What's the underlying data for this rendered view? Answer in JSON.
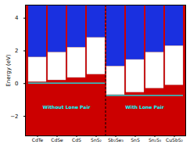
{
  "chart_data": {
    "type": "bar",
    "categories": [
      "CdTe",
      "CdSe",
      "CdS",
      "SnS₂",
      "Sb₂Se₃",
      "SnS",
      "Sn₂S₃",
      "CuSbS₂"
    ],
    "vbm": [
      0.1,
      0.2,
      0.35,
      0.55,
      -0.7,
      -0.55,
      -0.3,
      -0.1
    ],
    "cbm": [
      1.6,
      1.9,
      2.2,
      2.8,
      1.05,
      1.45,
      1.9,
      2.3
    ],
    "ylabel": "Energy (eV)",
    "ylim": [
      -3.2,
      4.8
    ],
    "yticks": [
      -2,
      0,
      2,
      4
    ],
    "grid": false,
    "color": "#ffffff",
    "background_color": "#cc0000",
    "conduction_color": "#1a30e0",
    "reference_color": "#00ffff",
    "groups": [
      {
        "label": "Without Lone Pair",
        "label_y": -1.5,
        "reference": 0.0,
        "first": "CdTe",
        "last": "SnS₂"
      },
      {
        "label": "With Lone Pair",
        "label_y": -1.5,
        "reference": -0.75,
        "first": "Sb₂Se₃",
        "last": "CuSbS₂"
      }
    ]
  }
}
